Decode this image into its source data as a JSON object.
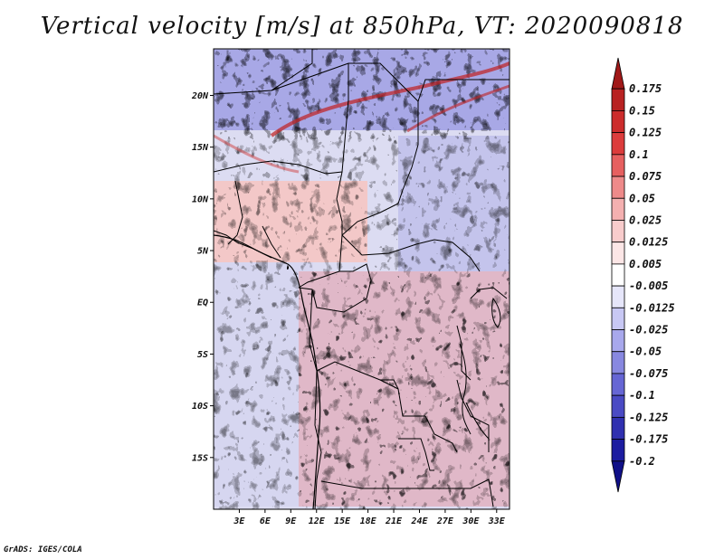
{
  "title": "Vertical velocity [m/s] at 850hPa, VT: 2020090818",
  "credit": "GrADS: IGES/COLA",
  "map": {
    "lat_labels": [
      "20N",
      "15N",
      "10N",
      "5N",
      "EQ",
      "5S",
      "10S",
      "15S"
    ],
    "lon_labels": [
      "3E",
      "6E",
      "9E",
      "12E",
      "15E",
      "18E",
      "21E",
      "24E",
      "27E",
      "30E",
      "33E"
    ],
    "lat_values": [
      20,
      15,
      10,
      5,
      0,
      -5,
      -10,
      -15
    ],
    "lon_values": [
      3,
      6,
      9,
      12,
      15,
      18,
      21,
      24,
      27,
      30,
      33
    ],
    "lon_range": [
      0,
      34.5
    ],
    "lat_range": [
      -20,
      24.5
    ]
  },
  "colorbar": {
    "labels": [
      "0.175",
      "0.15",
      "0.125",
      "0.1",
      "0.075",
      "0.05",
      "0.025",
      "0.0125",
      "0.005",
      "-0.005",
      "-0.0125",
      "-0.025",
      "-0.05",
      "-0.075",
      "-0.1",
      "-0.125",
      "-0.175",
      "-0.2"
    ],
    "colors": [
      "#a01818",
      "#b82222",
      "#cc2c2c",
      "#dc3c3c",
      "#e66060",
      "#ee8a8a",
      "#f4b0b0",
      "#f8cccc",
      "#fce6e6",
      "#ffffff",
      "#e6e6fa",
      "#c8c8f4",
      "#a8a8ec",
      "#8888e0",
      "#6666d4",
      "#4a4ac4",
      "#3030b0",
      "#1c1ca0",
      "#101088"
    ]
  }
}
